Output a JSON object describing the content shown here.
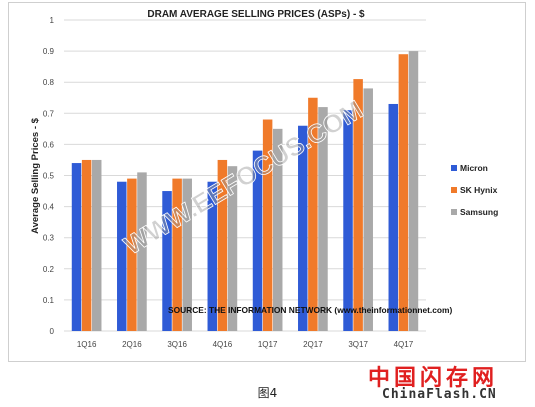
{
  "chart_data": {
    "type": "bar",
    "title": "DRAM AVERAGE SELLING PRICES (ASPs) - $",
    "ylabel": "Average Selling Prices - $",
    "xlabel": "",
    "ylim": [
      0,
      1
    ],
    "yticks": [
      "0",
      "0.1",
      "0.2",
      "0.3",
      "0.4",
      "0.5",
      "0.6",
      "0.7",
      "0.8",
      "0.9",
      "1"
    ],
    "categories": [
      "1Q16",
      "2Q16",
      "3Q16",
      "4Q16",
      "1Q17",
      "2Q17",
      "3Q17",
      "4Q17"
    ],
    "series": [
      {
        "name": "Micron",
        "color": "#2f5bd6",
        "values": [
          0.54,
          0.48,
          0.45,
          0.48,
          0.58,
          0.66,
          0.71,
          0.73
        ]
      },
      {
        "name": "SK Hynix",
        "color": "#f07a2a",
        "values": [
          0.55,
          0.49,
          0.49,
          0.55,
          0.68,
          0.75,
          0.81,
          0.89
        ]
      },
      {
        "name": "Samsung",
        "color": "#a9a9a9",
        "values": [
          0.55,
          0.51,
          0.49,
          0.53,
          0.65,
          0.72,
          0.78,
          0.9
        ]
      }
    ],
    "annotation": "SOURCE: THE INFORMATION NETWORK (www.theinformationnet.com)",
    "watermark": "WWW.EEFOCUS.COM",
    "grid": true,
    "legend_position": "right"
  },
  "caption": "图4",
  "corner_watermark": {
    "line1": "中国闪存网",
    "line2": "ChinaFlash.CN"
  }
}
